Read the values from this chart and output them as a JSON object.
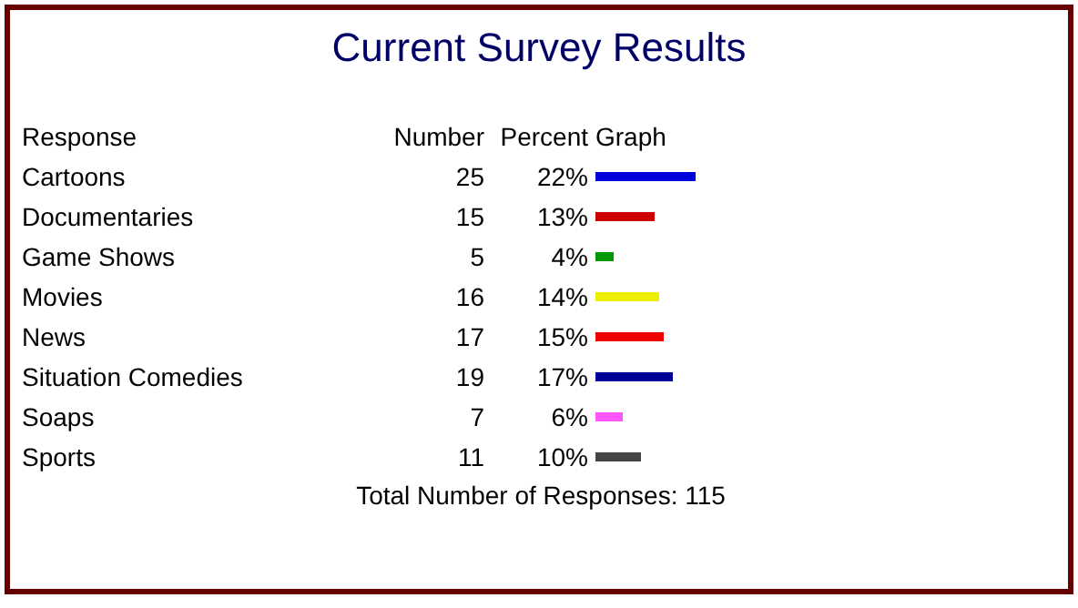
{
  "chart_data": {
    "type": "bar",
    "orientation": "horizontal",
    "title": "Current Survey Results",
    "categories": [
      "Cartoons",
      "Documentaries",
      "Game Shows",
      "Movies",
      "News",
      "Situation Comedies",
      "Soaps",
      "Sports"
    ],
    "values": [
      22,
      13,
      4,
      14,
      15,
      17,
      6,
      10
    ],
    "value_labels": [
      "22%",
      "13%",
      "4%",
      "14%",
      "15%",
      "17%",
      "6%",
      "10%"
    ],
    "colors": [
      "#0000dd",
      "#cc0000",
      "#009900",
      "#eeee00",
      "#ee0000",
      "#000099",
      "#ff55ff",
      "#444444"
    ],
    "annotations": [
      "Response",
      "Number",
      "Percent",
      "Graph",
      "25",
      "15",
      "5",
      "16",
      "17",
      "19",
      "7",
      "11",
      "Total Number of Responses: 115"
    ]
  }
}
